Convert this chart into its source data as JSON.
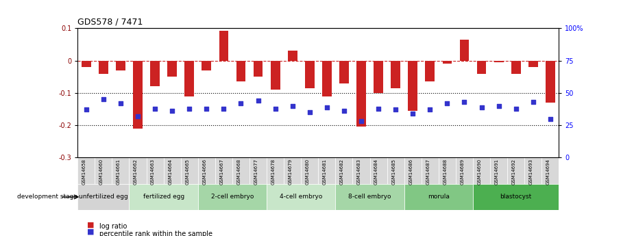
{
  "title": "GDS578 / 7471",
  "samples": [
    "GSM14658",
    "GSM14660",
    "GSM14661",
    "GSM14662",
    "GSM14663",
    "GSM14664",
    "GSM14665",
    "GSM14666",
    "GSM14667",
    "GSM14668",
    "GSM14677",
    "GSM14678",
    "GSM14679",
    "GSM14680",
    "GSM14681",
    "GSM14682",
    "GSM14683",
    "GSM14684",
    "GSM14685",
    "GSM14686",
    "GSM14687",
    "GSM14688",
    "GSM14689",
    "GSM14690",
    "GSM14691",
    "GSM14692",
    "GSM14693",
    "GSM14694"
  ],
  "log_ratio": [
    -0.02,
    -0.04,
    -0.03,
    -0.21,
    -0.08,
    -0.05,
    -0.11,
    -0.03,
    0.093,
    -0.065,
    -0.05,
    -0.09,
    0.03,
    -0.085,
    -0.11,
    -0.07,
    -0.205,
    -0.1,
    -0.085,
    -0.155,
    -0.065,
    -0.01,
    0.065,
    -0.04,
    -0.005,
    -0.04,
    -0.02,
    -0.13
  ],
  "percentile_rank": [
    37,
    45,
    42,
    32,
    38,
    36,
    38,
    38,
    38,
    42,
    44,
    38,
    40,
    35,
    39,
    36,
    28,
    38,
    37,
    34,
    37,
    42,
    43,
    39,
    40,
    38,
    43,
    30
  ],
  "stages": [
    {
      "label": "unfertilized egg",
      "start": 0,
      "end": 3,
      "color": "#c8e6c9"
    },
    {
      "label": "fertilized egg",
      "start": 3,
      "end": 7,
      "color": "#a5d6a7"
    },
    {
      "label": "2-cell embryo",
      "start": 7,
      "end": 11,
      "color": "#81c784"
    },
    {
      "label": "4-cell embryo",
      "start": 11,
      "end": 15,
      "color": "#a5d6a7"
    },
    {
      "label": "8-cell embryo",
      "start": 15,
      "end": 19,
      "color": "#81c784"
    },
    {
      "label": "morula",
      "start": 19,
      "end": 23,
      "color": "#66bb6a"
    },
    {
      "label": "blastocyst",
      "start": 23,
      "end": 28,
      "color": "#4caf50"
    }
  ],
  "bar_color": "#cc2222",
  "dot_color": "#3333cc",
  "ylim_left": [
    -0.3,
    0.1
  ],
  "ylim_right": [
    0,
    100
  ],
  "hline_y": 0.0,
  "dotted_lines": [
    -0.1,
    -0.2
  ],
  "right_ticks": [
    0,
    25,
    50,
    75,
    100
  ],
  "right_tick_labels": [
    "0",
    "25",
    "50",
    "75",
    "100%"
  ]
}
